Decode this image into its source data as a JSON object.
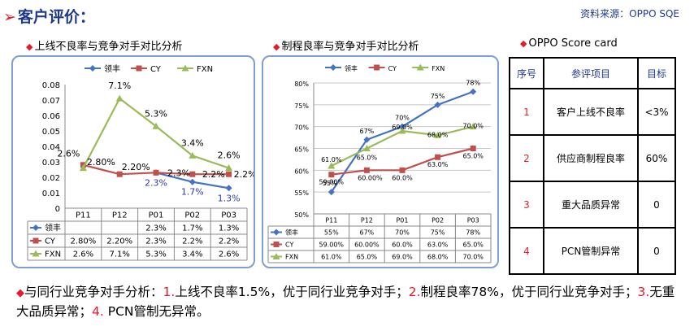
{
  "header": {
    "title": "客户评价：",
    "source": "资料来源：OPPO SQE"
  },
  "charts": [
    {
      "subtitle": "上线不良率与竞争对手对比分析",
      "legend": [
        "领丰",
        "CY",
        "FXN"
      ],
      "colors": {
        "领丰": "#4472c4",
        "CY": "#c0504d",
        "FXN": "#9bbb59"
      }
    },
    {
      "subtitle": "制程良率与竞争对手对比分析",
      "legend": [
        "领丰",
        "CY",
        "FXN"
      ],
      "colors": {
        "领丰": "#4472c4",
        "CY": "#c0504d",
        "FXN": "#9bbb59"
      }
    }
  ],
  "chart_data": [
    {
      "type": "line",
      "categories": [
        "P11",
        "P12",
        "P01",
        "P02",
        "P03"
      ],
      "series": [
        {
          "name": "领丰",
          "values": [
            null,
            null,
            0.023,
            0.017,
            0.013
          ],
          "table": [
            "",
            "",
            "2.3%",
            "1.7%",
            "1.3%"
          ],
          "labels": [
            "",
            "",
            "2.3%",
            "1.7%",
            "1.3%"
          ]
        },
        {
          "name": "CY",
          "values": [
            0.028,
            0.022,
            0.023,
            0.022,
            0.022
          ],
          "table": [
            "2.80%",
            "2.20%",
            "2.3%",
            "2.2%",
            "2.2%"
          ],
          "labels": [
            "2.80%",
            "2.20%",
            "2.3%",
            "2.2%",
            "2.2%"
          ]
        },
        {
          "name": "FXN",
          "values": [
            0.026,
            0.071,
            0.053,
            0.034,
            0.026
          ],
          "table": [
            "2.6%",
            "7.1%",
            "5.3%",
            "3.4%",
            "2.6%"
          ],
          "labels": [
            "2.6%",
            "7.1%",
            "5.3%",
            "3.4%",
            "2.6%"
          ]
        }
      ],
      "ylim": [
        0,
        0.08
      ],
      "yticks": [
        "0",
        "0.01",
        "0.02",
        "0.03",
        "0.04",
        "0.05",
        "0.06",
        "0.07",
        "0.08"
      ],
      "grid": false,
      "legend_position": "top"
    },
    {
      "type": "line",
      "categories": [
        "P11",
        "P12",
        "P01",
        "P02",
        "P03"
      ],
      "series": [
        {
          "name": "领丰",
          "values": [
            55,
            67,
            70,
            75,
            78
          ],
          "table": [
            "55%",
            "67%",
            "70%",
            "75%",
            "78%"
          ],
          "labels": [
            "55%",
            "67%",
            "70%",
            "75%",
            "78%"
          ]
        },
        {
          "name": "CY",
          "values": [
            59,
            60,
            60,
            63,
            65
          ],
          "table": [
            "59.00%",
            "60.00%",
            "60.0%",
            "63.0%",
            "65.0%"
          ],
          "labels": [
            "59.00%",
            "60.00%",
            "60.0%",
            "63.0%",
            "65.0%"
          ]
        },
        {
          "name": "FXN",
          "values": [
            61,
            65,
            69,
            68,
            70
          ],
          "table": [
            "61.0%",
            "65.0%",
            "69.0%",
            "68.0%",
            "70.0%"
          ],
          "labels": [
            "61.0%",
            "65.0%",
            "69.0%",
            "68.0%",
            "70.0%"
          ]
        }
      ],
      "ylim": [
        50,
        80
      ],
      "yticks": [
        "50%",
        "55%",
        "60%",
        "65%",
        "70%",
        "75%",
        "80%"
      ],
      "grid": true,
      "legend_position": "top"
    }
  ],
  "scorecard": {
    "title": "OPPO Score card",
    "headers": [
      "序号",
      "参评项目",
      "目标"
    ],
    "rows": [
      {
        "no": "1",
        "item": "客户上线不良率",
        "target": "<3%"
      },
      {
        "no": "2",
        "item": "供应商制程良率",
        "target": "60%"
      },
      {
        "no": "3",
        "item": "重大品质异常",
        "target": "0"
      },
      {
        "no": "4",
        "item": "PCN管制异常",
        "target": "0"
      }
    ]
  },
  "summary": {
    "lead": "与同行业竞争对手分析：",
    "n1": "1.",
    "t1": "上线不良率1.5%，优于同行业竞争对手；",
    "n2": "2.",
    "t2": "制程良率78%，优于同行业竞争对手；",
    "n3": "3.",
    "t3": "无重大品质异常；",
    "n4": "4.",
    "t4": " PCN管制无异常。"
  }
}
